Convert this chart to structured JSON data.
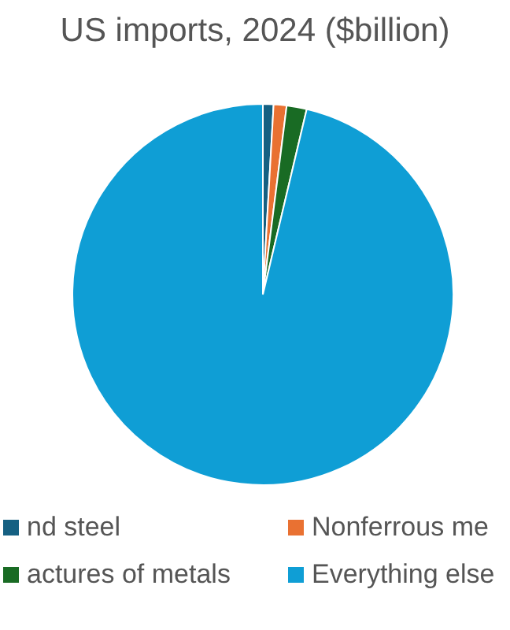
{
  "chart_data": {
    "type": "pie",
    "title": "US imports, 2024 ($billion)",
    "categories": [
      "nd steel",
      "Nonferrous me",
      "actures of metals",
      "Everything else"
    ],
    "values": [
      0.9,
      1.1,
      1.7,
      96.3
    ],
    "colors": [
      "#156082",
      "#e97132",
      "#196b24",
      "#0f9ed5"
    ],
    "legend": "bottom"
  }
}
